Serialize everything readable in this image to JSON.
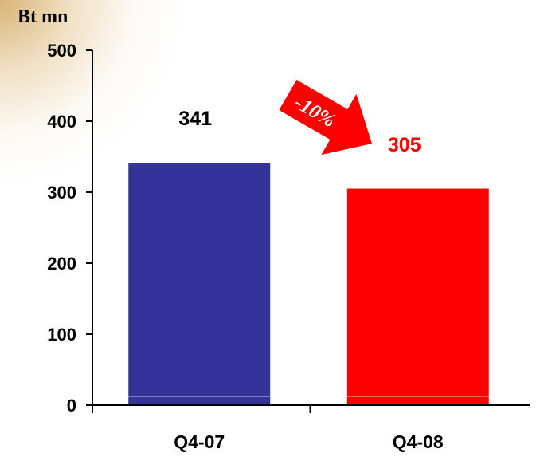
{
  "colors": {
    "bar_2007": "#333399",
    "bar_2008": "#ff0000",
    "label_2007": "#000000",
    "label_2008": "#ff0000",
    "arrow": "#ff0000"
  },
  "chart_data": {
    "type": "bar",
    "ylabel": "Bt mn",
    "ylim": [
      0,
      500
    ],
    "yticks": [
      0,
      100,
      200,
      300,
      400,
      500
    ],
    "categories": [
      "Q4-07",
      "Q4-08"
    ],
    "values": [
      341,
      305
    ],
    "data_labels": [
      "341",
      "305"
    ],
    "annotation": {
      "text": "-10%",
      "shape": "arrow",
      "direction": "down-right"
    },
    "grid": false,
    "legend": "none"
  }
}
